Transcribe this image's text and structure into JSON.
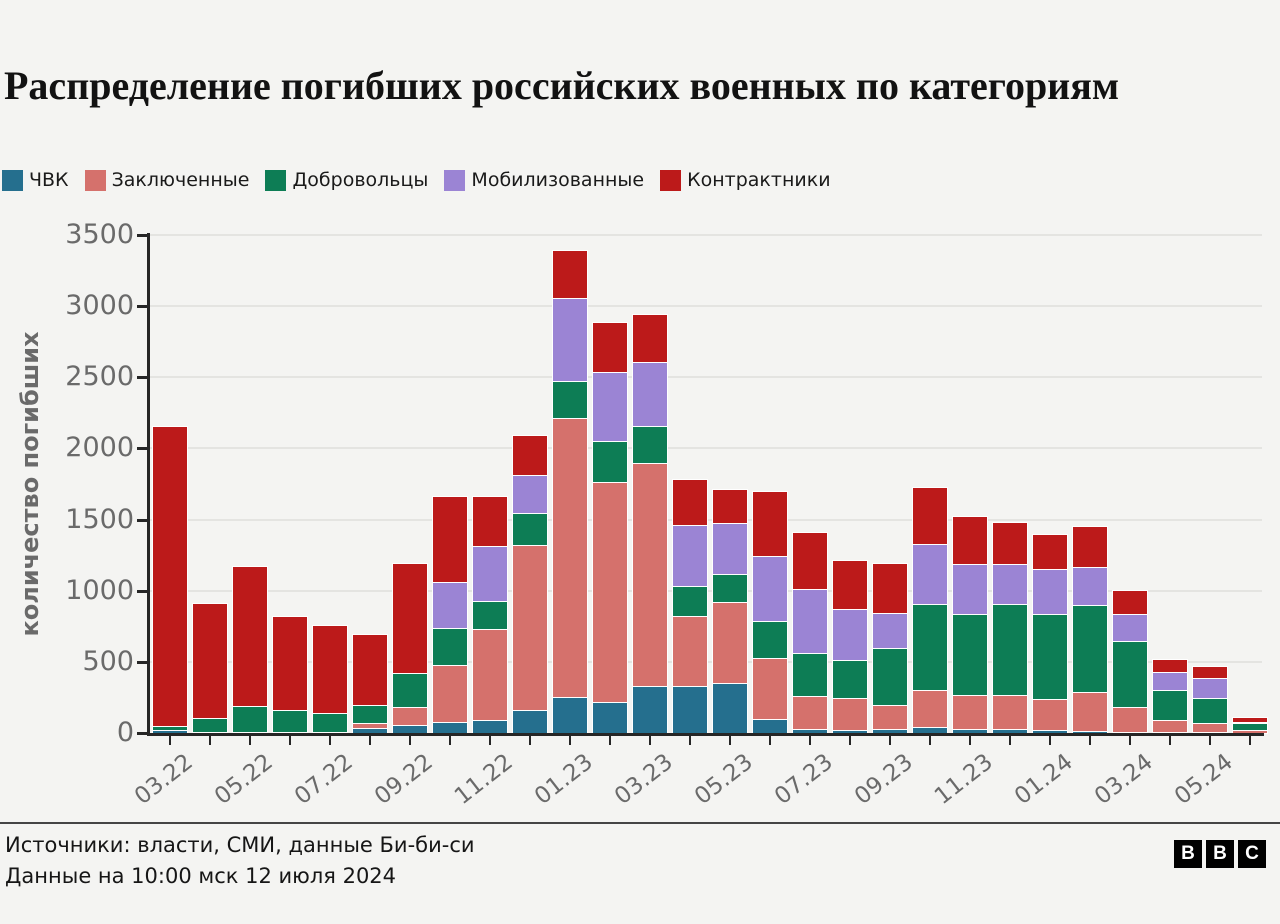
{
  "page": {
    "background": "#f4f4f2"
  },
  "header": {
    "title": "Распределение погибших российских военных по категориям"
  },
  "chart_data": {
    "type": "bar",
    "stacked": true,
    "title": "Распределение погибших российских военных по категориям",
    "xlabel": "",
    "ylabel": "количество погибших",
    "ylim": [
      0,
      3500
    ],
    "ytick_step": 500,
    "yticks": [
      0,
      500,
      1000,
      1500,
      2000,
      2500,
      3000,
      3500
    ],
    "grid": "horizontal",
    "legend_position": "top-left",
    "categories": [
      "03.22",
      "04.22",
      "05.22",
      "06.22",
      "07.22",
      "08.22",
      "09.22",
      "10.22",
      "11.22",
      "12.22",
      "01.23",
      "02.23",
      "03.23",
      "04.23",
      "05.23",
      "06.23",
      "07.23",
      "08.23",
      "09.23",
      "10.23",
      "11.23",
      "12.23",
      "01.24",
      "02.24",
      "03.24",
      "04.24",
      "05.24",
      "06.24"
    ],
    "xtick_labels_shown": [
      "03.22",
      "05.22",
      "07.22",
      "09.22",
      "11.22",
      "01.23",
      "03.23",
      "05.23",
      "07.23",
      "09.23",
      "11.23",
      "01.24",
      "03.24",
      "05.24"
    ],
    "series": [
      {
        "name": "ЧВК",
        "color": "#256f8e",
        "values": [
          20,
          10,
          10,
          10,
          10,
          35,
          55,
          80,
          95,
          165,
          250,
          220,
          330,
          330,
          355,
          100,
          25,
          20,
          25,
          45,
          25,
          25,
          20,
          15,
          10,
          10,
          10,
          0
        ]
      },
      {
        "name": "Заключенные",
        "color": "#d5716c",
        "values": [
          0,
          0,
          0,
          0,
          0,
          35,
          125,
          400,
          635,
          1160,
          1965,
          1545,
          1570,
          495,
          565,
          425,
          235,
          225,
          175,
          260,
          245,
          245,
          220,
          275,
          175,
          80,
          60,
          20
        ]
      },
      {
        "name": "Добровольцы",
        "color": "#0d7d55",
        "values": [
          30,
          95,
          180,
          150,
          130,
          130,
          240,
          260,
          200,
          220,
          260,
          285,
          260,
          210,
          200,
          260,
          305,
          270,
          400,
          600,
          565,
          635,
          595,
          610,
          465,
          210,
          175,
          55
        ]
      },
      {
        "name": "Мобилизованные",
        "color": "#9b84d4",
        "values": [
          0,
          0,
          0,
          0,
          0,
          0,
          0,
          320,
          385,
          270,
          580,
          485,
          450,
          425,
          355,
          460,
          450,
          355,
          245,
          425,
          355,
          285,
          315,
          265,
          185,
          130,
          140,
          5
        ]
      },
      {
        "name": "Контрактники",
        "color": "#bc1a1a",
        "values": [
          2100,
          800,
          980,
          655,
          615,
          490,
          770,
          600,
          345,
          270,
          335,
          350,
          325,
          320,
          235,
          450,
          390,
          340,
          340,
          395,
          330,
          285,
          245,
          285,
          165,
          80,
          80,
          25
        ]
      }
    ]
  },
  "footer": {
    "source_line": "Источники: власти, СМИ, данные Би-би-си",
    "updated_line": "Данные на 10:00 мск 12 июля 2024",
    "logo_letters": [
      "B",
      "B",
      "C"
    ]
  }
}
